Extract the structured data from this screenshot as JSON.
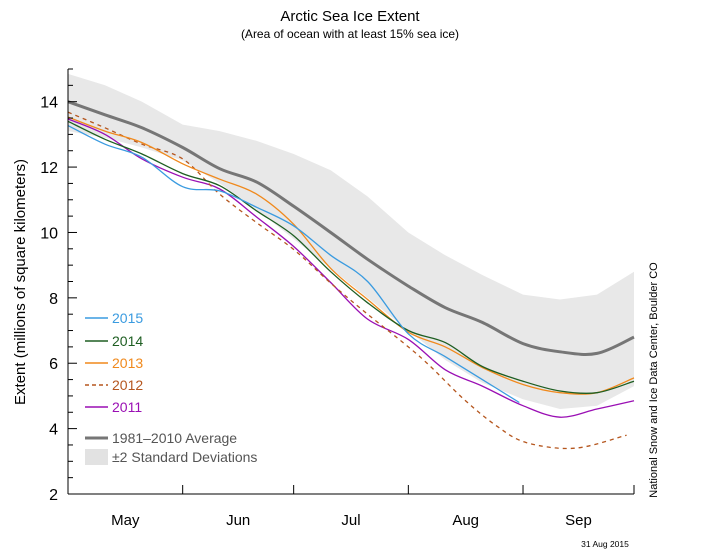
{
  "chart_data": {
    "type": "line",
    "title": "Arctic Sea Ice Extent",
    "subtitle": "(Area of ocean with at least 15% sea ice)",
    "ylabel": "Extent (millions of square kilometers)",
    "xlabel": "",
    "ylim": [
      2,
      15
    ],
    "xlim": [
      "05-01",
      "10-01"
    ],
    "yticks": [
      "2",
      "4",
      "6",
      "8",
      "10",
      "12",
      "14"
    ],
    "xtick_labels": [
      "May",
      "Jun",
      "Jul",
      "Aug",
      "Sep"
    ],
    "grid": false,
    "legend": "bottom-left",
    "credit": "National Snow and Ice Data Center, Boulder CO",
    "date_stamp": "31 Aug 2015",
    "band": {
      "name": "±2 Standard Deviations",
      "color": "#e8e8e8",
      "x": [
        "05-01",
        "05-11",
        "05-21",
        "06-01",
        "06-11",
        "06-21",
        "07-01",
        "07-11",
        "07-21",
        "08-01",
        "08-11",
        "08-21",
        "09-01",
        "09-11",
        "09-21",
        "10-01"
      ],
      "upper": [
        14.85,
        14.5,
        14.0,
        13.3,
        13.1,
        12.8,
        12.4,
        11.9,
        11.1,
        10.0,
        9.3,
        8.7,
        8.1,
        7.95,
        8.1,
        8.8
      ],
      "lower": [
        13.1,
        12.9,
        12.6,
        12.2,
        11.5,
        10.7,
        9.8,
        8.9,
        8.0,
        7.0,
        6.1,
        5.4,
        4.9,
        4.6,
        4.7,
        5.3
      ]
    },
    "series": [
      {
        "name": "2015",
        "color": "#3a9be0",
        "dashed": false,
        "width": 1.3,
        "x": [
          "05-01",
          "05-11",
          "05-21",
          "06-01",
          "06-11",
          "06-21",
          "07-01",
          "07-11",
          "07-21",
          "08-01",
          "08-11",
          "08-21",
          "08-31"
        ],
        "y": [
          13.27,
          12.7,
          12.3,
          11.4,
          11.27,
          10.77,
          10.2,
          9.3,
          8.5,
          6.9,
          6.2,
          5.5,
          4.8
        ]
      },
      {
        "name": "2014",
        "color": "#1e5e22",
        "dashed": false,
        "width": 1.3,
        "x": [
          "05-01",
          "05-11",
          "05-21",
          "06-01",
          "06-11",
          "06-21",
          "07-01",
          "07-11",
          "07-21",
          "08-01",
          "08-11",
          "08-21",
          "09-01",
          "09-11",
          "09-21",
          "10-01"
        ],
        "y": [
          13.4,
          12.85,
          12.4,
          11.8,
          11.43,
          10.66,
          9.9,
          8.8,
          7.85,
          7.0,
          6.63,
          5.9,
          5.45,
          5.15,
          5.1,
          5.45
        ]
      },
      {
        "name": "2013",
        "color": "#f0891c",
        "dashed": false,
        "width": 1.3,
        "x": [
          "05-01",
          "05-11",
          "05-21",
          "06-01",
          "06-11",
          "06-21",
          "07-01",
          "07-11",
          "07-21",
          "08-01",
          "08-11",
          "08-21",
          "09-01",
          "09-11",
          "09-21",
          "10-01"
        ],
        "y": [
          13.53,
          13.1,
          12.75,
          12.1,
          11.63,
          11.17,
          10.25,
          8.9,
          7.95,
          6.95,
          6.5,
          5.87,
          5.35,
          5.1,
          5.1,
          5.55
        ]
      },
      {
        "name": "2012",
        "color": "#b5561e",
        "dashed": true,
        "width": 1.3,
        "x": [
          "05-01",
          "05-11",
          "05-21",
          "06-01",
          "06-11",
          "06-21",
          "07-01",
          "07-11",
          "07-21",
          "08-01",
          "08-07",
          "08-16",
          "08-25",
          "09-02",
          "09-15",
          "09-29"
        ],
        "y": [
          13.68,
          13.2,
          12.7,
          12.25,
          11.17,
          10.3,
          9.48,
          8.45,
          7.5,
          6.5,
          5.9,
          4.9,
          4.07,
          3.57,
          3.4,
          3.8
        ]
      },
      {
        "name": "2011",
        "color": "#9a0fb4",
        "dashed": false,
        "width": 1.3,
        "x": [
          "05-01",
          "05-11",
          "05-21",
          "06-01",
          "06-11",
          "06-21",
          "07-01",
          "07-11",
          "07-21",
          "08-01",
          "08-11",
          "08-21",
          "09-01",
          "09-11",
          "09-21",
          "10-01"
        ],
        "y": [
          13.47,
          13.0,
          12.25,
          11.69,
          11.33,
          10.47,
          9.57,
          8.47,
          7.35,
          6.73,
          5.8,
          5.3,
          4.7,
          4.35,
          4.6,
          4.85
        ]
      },
      {
        "name": "1981–2010 Average",
        "color": "#767676",
        "dashed": false,
        "width": 3,
        "x": [
          "05-01",
          "05-11",
          "05-21",
          "06-01",
          "06-11",
          "06-21",
          "07-01",
          "07-11",
          "07-21",
          "08-01",
          "08-11",
          "08-21",
          "09-01",
          "09-11",
          "09-21",
          "10-01"
        ],
        "y": [
          14.0,
          13.6,
          13.2,
          12.6,
          11.95,
          11.54,
          10.8,
          10.0,
          9.18,
          8.36,
          7.7,
          7.25,
          6.6,
          6.35,
          6.3,
          6.8
        ]
      }
    ]
  }
}
